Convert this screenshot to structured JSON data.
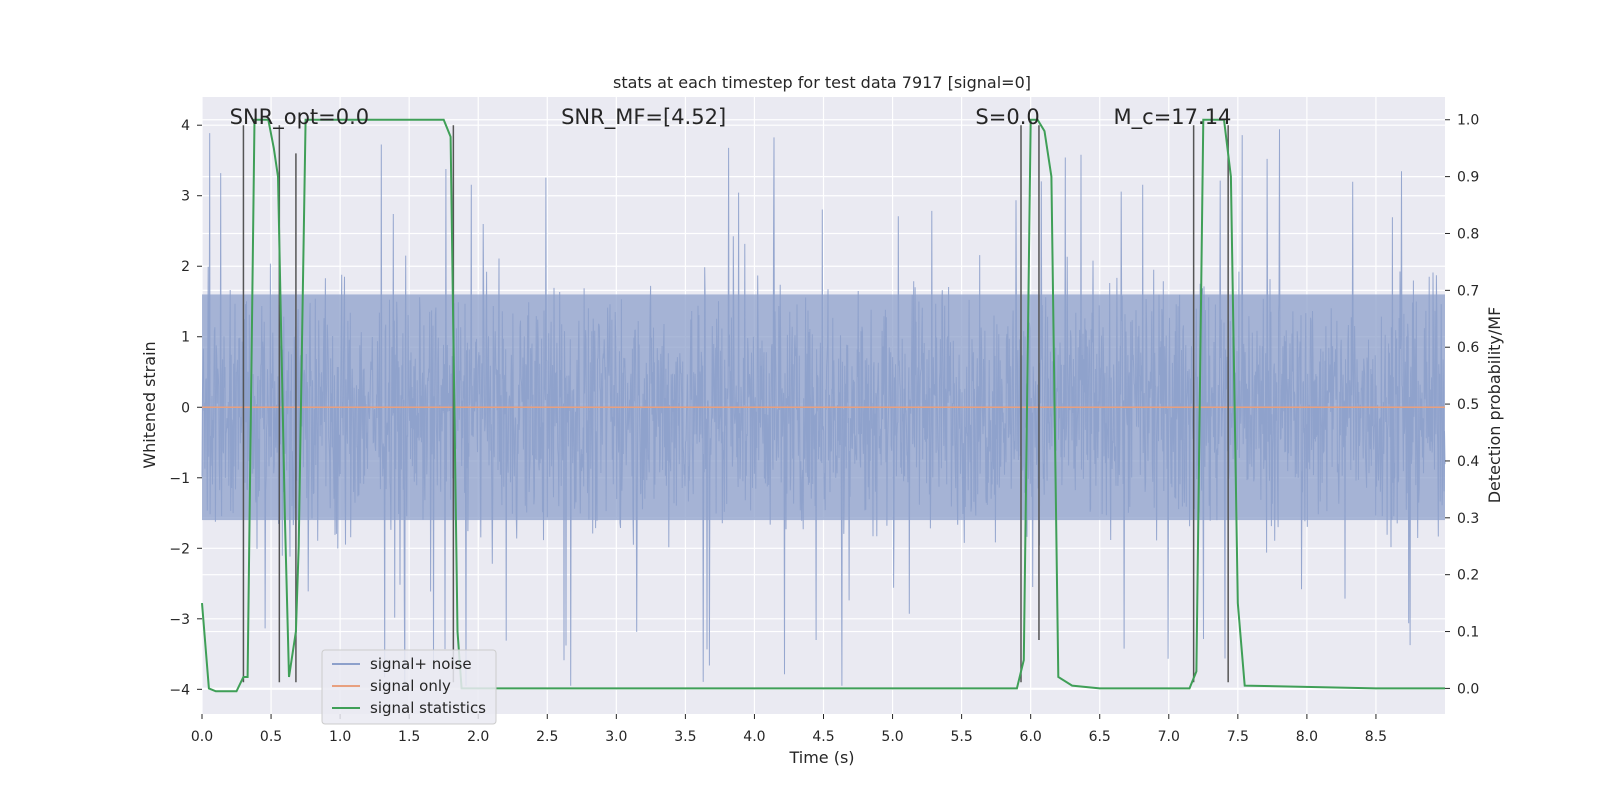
{
  "chart_data": {
    "type": "line",
    "title": "stats at each timestep for test data 7917 [signal=0]",
    "xlabel": "Time (s)",
    "ylabel": "Whitened strain",
    "y2label": "Detection probability/MF",
    "xlim": [
      0,
      9.0
    ],
    "ylim": [
      -4.35,
      4.4
    ],
    "y2lim": [
      -0.045,
      1.04
    ],
    "x_ticks": [
      0.0,
      0.5,
      1.0,
      1.5,
      2.0,
      2.5,
      3.0,
      3.5,
      4.0,
      4.5,
      5.0,
      5.5,
      6.0,
      6.5,
      7.0,
      7.5,
      8.0,
      8.5
    ],
    "x_tick_labels": [
      "0.0",
      "0.5",
      "1.0",
      "1.5",
      "2.0",
      "2.5",
      "3.0",
      "3.5",
      "4.0",
      "4.5",
      "5.0",
      "5.5",
      "6.0",
      "6.5",
      "7.0",
      "7.5",
      "8.0",
      "8.5"
    ],
    "y_ticks": [
      -4,
      -3,
      -2,
      -1,
      0,
      1,
      2,
      3,
      4
    ],
    "y_tick_labels": [
      "−4",
      "−3",
      "−2",
      "−1",
      "0",
      "1",
      "2",
      "3",
      "4"
    ],
    "y2_ticks": [
      0.0,
      0.1,
      0.2,
      0.3,
      0.4,
      0.5,
      0.6,
      0.7,
      0.8,
      0.9,
      1.0
    ],
    "y2_tick_labels": [
      "0.0",
      "0.1",
      "0.2",
      "0.3",
      "0.4",
      "0.5",
      "0.6",
      "0.7",
      "0.8",
      "0.9",
      "1.0"
    ],
    "grid": true,
    "legend_position": "lower-left",
    "colors": {
      "background": "#eaeaf2",
      "noise": "#8da0cb",
      "signal": "#e8a07f",
      "statistics": "#3f9f57",
      "markers": "#555555",
      "grid": "#ffffff"
    },
    "annotations": [
      {
        "text": "SNR_opt=0.0",
        "x": 0.2
      },
      {
        "text": "SNR_MF=[4.52]",
        "x": 2.6
      },
      {
        "text": "S=0.0",
        "x": 5.6
      },
      {
        "text": "M_c=17.14",
        "x": 6.6
      }
    ],
    "series": [
      {
        "name": "signal+ noise",
        "axis": "left",
        "style": "dense-noise",
        "duration": 9.0,
        "core_amplitude": 1.6,
        "envelope_amplitude": 2.4,
        "max_spike": 4.0,
        "min_spike": -3.95
      },
      {
        "name": "signal only",
        "axis": "left",
        "x": [
          0,
          9.0
        ],
        "y": [
          0,
          0
        ]
      },
      {
        "name": "signal statistics",
        "axis": "right",
        "x": [
          0.0,
          0.05,
          0.1,
          0.25,
          0.3,
          0.33,
          0.38,
          0.48,
          0.52,
          0.55,
          0.6,
          0.63,
          0.68,
          0.7,
          0.75,
          1.75,
          1.8,
          1.85,
          1.88,
          1.95,
          5.8,
          5.9,
          5.95,
          6.0,
          6.05,
          6.1,
          6.15,
          6.2,
          6.3,
          6.5,
          7.0,
          7.15,
          7.2,
          7.25,
          7.35,
          7.4,
          7.45,
          7.5,
          7.55,
          8.5,
          9.0
        ],
        "y": [
          0.15,
          0.0,
          -0.005,
          -0.005,
          0.02,
          0.02,
          1.0,
          1.0,
          0.95,
          0.9,
          0.3,
          0.02,
          0.1,
          0.25,
          1.0,
          1.0,
          0.97,
          0.1,
          0.0,
          0.0,
          0.0,
          0.0,
          0.05,
          1.0,
          1.0,
          0.98,
          0.9,
          0.02,
          0.005,
          0.0,
          0.0,
          0.0,
          0.03,
          1.0,
          1.0,
          1.0,
          0.9,
          0.15,
          0.005,
          0.0,
          0.0
        ]
      }
    ],
    "detection_markers": [
      {
        "x": 0.3,
        "bottom": -3.9,
        "top": 4.0
      },
      {
        "x": 0.56,
        "bottom": -3.9,
        "top": 4.0
      },
      {
        "x": 0.68,
        "bottom": -3.9,
        "top": 3.6
      },
      {
        "x": 1.82,
        "bottom": -3.9,
        "top": 4.0
      },
      {
        "x": 5.93,
        "bottom": -3.9,
        "top": 4.0
      },
      {
        "x": 6.06,
        "bottom": -3.3,
        "top": 4.0
      },
      {
        "x": 7.18,
        "bottom": -3.9,
        "top": 4.0
      },
      {
        "x": 7.43,
        "bottom": -3.9,
        "top": 4.0
      }
    ]
  }
}
